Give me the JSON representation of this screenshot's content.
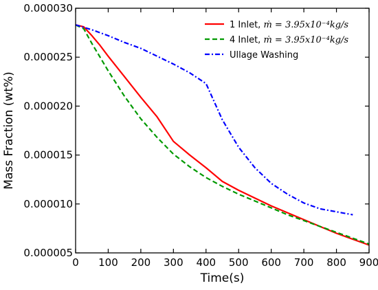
{
  "chart_data": {
    "type": "line",
    "xlabel": "Time(s)",
    "ylabel": "Mass Fraction (wt%)",
    "xlim": [
      0,
      900
    ],
    "ylim": [
      5e-06,
      3e-05
    ],
    "x_ticks": [
      "0",
      "100",
      "200",
      "300",
      "400",
      "500",
      "600",
      "700",
      "800",
      "900"
    ],
    "y_ticks": [
      "0.000005",
      "0.000010",
      "0.000015",
      "0.000020",
      "0.000025",
      "0.000030"
    ],
    "grid": false,
    "legend_position": "top-right",
    "series": [
      {
        "name": "1 Inlet, ṁ = 3.95x10⁻⁴ kg/s",
        "legend_prefix": "1 Inlet, ",
        "legend_math": "ṁ = 3.95x10⁻⁴kg/s",
        "color": "#ff0000",
        "style": "solid",
        "points": [
          [
            0,
            2.83e-05
          ],
          [
            25,
            2.81e-05
          ],
          [
            50,
            2.72e-05
          ],
          [
            75,
            2.62e-05
          ],
          [
            100,
            2.51e-05
          ],
          [
            150,
            2.3e-05
          ],
          [
            200,
            2.09e-05
          ],
          [
            250,
            1.89e-05
          ],
          [
            300,
            1.64e-05
          ],
          [
            350,
            1.5e-05
          ],
          [
            400,
            1.37e-05
          ],
          [
            450,
            1.23e-05
          ],
          [
            500,
            1.14e-05
          ],
          [
            550,
            1.06e-05
          ],
          [
            600,
            9.8e-06
          ],
          [
            650,
            9.1e-06
          ],
          [
            700,
            8.4e-06
          ],
          [
            750,
            7.7e-06
          ],
          [
            800,
            7e-06
          ],
          [
            850,
            6.4e-06
          ],
          [
            900,
            5.8e-06
          ]
        ]
      },
      {
        "name": "4 Inlet, ṁ = 3.95x10⁻⁴ kg/s",
        "legend_prefix": "4 Inlet, ",
        "legend_math": "ṁ = 3.95x10⁻⁴kg/s",
        "color": "#009900",
        "style": "dashed",
        "points": [
          [
            0,
            2.83e-05
          ],
          [
            25,
            2.79e-05
          ],
          [
            50,
            2.64e-05
          ],
          [
            75,
            2.5e-05
          ],
          [
            100,
            2.36e-05
          ],
          [
            150,
            2.1e-05
          ],
          [
            200,
            1.87e-05
          ],
          [
            250,
            1.68e-05
          ],
          [
            300,
            1.51e-05
          ],
          [
            350,
            1.38e-05
          ],
          [
            400,
            1.27e-05
          ],
          [
            450,
            1.18e-05
          ],
          [
            500,
            1.1e-05
          ],
          [
            550,
            1.03e-05
          ],
          [
            600,
            9.6e-06
          ],
          [
            650,
            8.9e-06
          ],
          [
            700,
            8.3e-06
          ],
          [
            750,
            7.7e-06
          ],
          [
            800,
            7.1e-06
          ],
          [
            850,
            6.5e-06
          ],
          [
            900,
            5.9e-06
          ]
        ]
      },
      {
        "name": "Ullage Washing",
        "legend_prefix": "Ullage Washing",
        "legend_math": "",
        "color": "#0000ff",
        "style": "dashdot",
        "points": [
          [
            0,
            2.83e-05
          ],
          [
            50,
            2.78e-05
          ],
          [
            100,
            2.72e-05
          ],
          [
            150,
            2.65e-05
          ],
          [
            200,
            2.59e-05
          ],
          [
            250,
            2.51e-05
          ],
          [
            300,
            2.43e-05
          ],
          [
            350,
            2.34e-05
          ],
          [
            400,
            2.23e-05
          ],
          [
            450,
            1.86e-05
          ],
          [
            500,
            1.58e-05
          ],
          [
            550,
            1.37e-05
          ],
          [
            600,
            1.21e-05
          ],
          [
            650,
            1.1e-05
          ],
          [
            700,
            1.01e-05
          ],
          [
            750,
            9.5e-06
          ],
          [
            800,
            9.2e-06
          ],
          [
            850,
            8.9e-06
          ]
        ]
      }
    ]
  }
}
